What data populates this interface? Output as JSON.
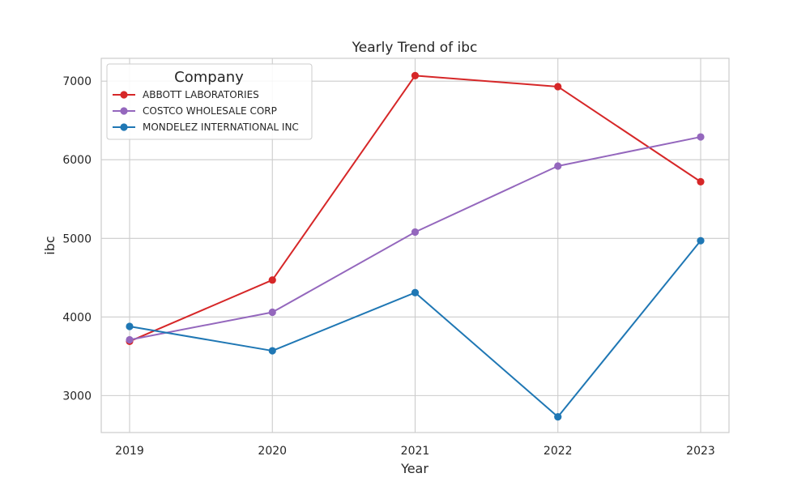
{
  "chart_data": {
    "type": "line",
    "title": "Yearly Trend of ibc",
    "xlabel": "Year",
    "ylabel": "ibc",
    "categories": [
      "2019",
      "2020",
      "2021",
      "2022",
      "2023"
    ],
    "yticks": [
      3000,
      4000,
      5000,
      6000,
      7000
    ],
    "ylim": [
      2530,
      7290
    ],
    "grid": true,
    "legend": {
      "title": "Company",
      "placement": "top-left"
    },
    "series": [
      {
        "name": "ABBOTT LABORATORIES",
        "color": "#d62728",
        "values": [
          3690,
          4470,
          7070,
          6930,
          5720
        ]
      },
      {
        "name": "COSTCO WHOLESALE CORP",
        "color": "#9467bd",
        "values": [
          3710,
          4060,
          5080,
          5920,
          6290
        ]
      },
      {
        "name": "MONDELEZ INTERNATIONAL INC",
        "color": "#1f77b4",
        "values": [
          3880,
          3570,
          4310,
          2730,
          4970
        ]
      }
    ]
  }
}
